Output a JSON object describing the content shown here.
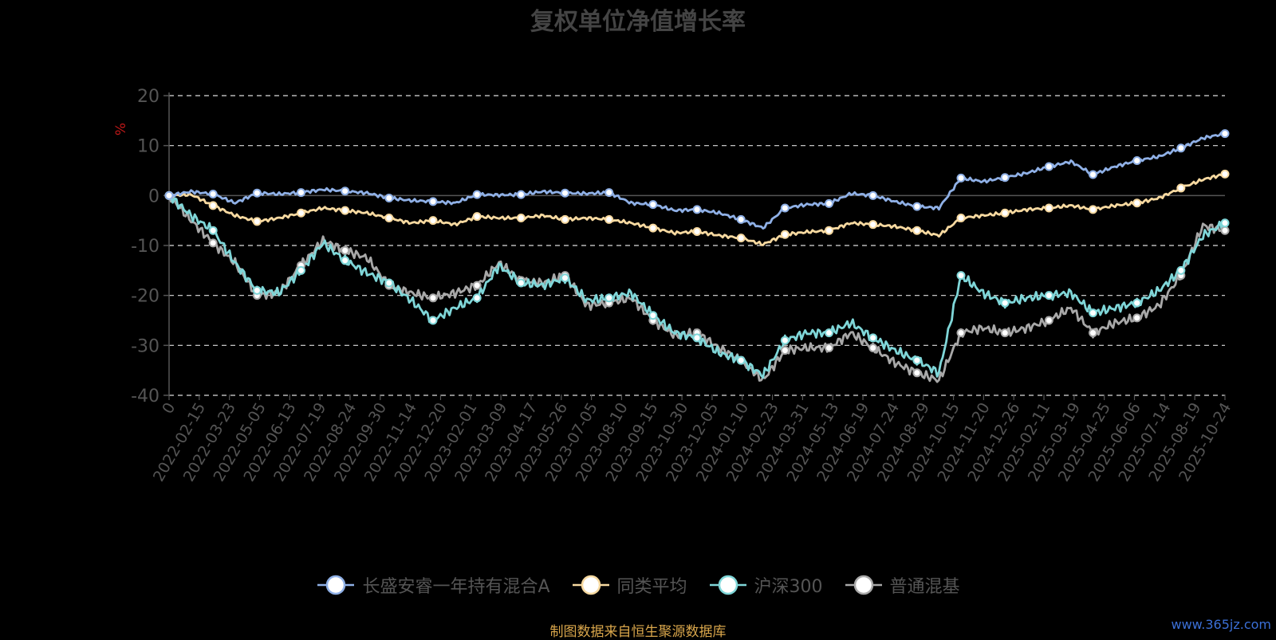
{
  "title": "复权单位净值增长率",
  "source": "制图数据来自恒生聚源数据库",
  "watermark": "www.365jz.com",
  "chart_data": {
    "type": "line",
    "ylabel": "%",
    "ylim": [
      -40,
      20
    ],
    "yticks": [
      20,
      10,
      0,
      -10,
      -20,
      -30,
      -40
    ],
    "grid": true,
    "legend_position": "bottom",
    "x_ticks": [
      "0",
      "2022-02-15",
      "2022-03-23",
      "2022-05-05",
      "2022-06-13",
      "2022-07-19",
      "2022-08-24",
      "2022-09-30",
      "2022-11-14",
      "2022-12-20",
      "2023-02-01",
      "2023-03-09",
      "2023-04-17",
      "2023-05-26",
      "2023-07-05",
      "2023-08-10",
      "2023-09-15",
      "2023-10-30",
      "2023-12-05",
      "2024-01-10",
      "2024-02-23",
      "2024-03-31",
      "2024-05-13",
      "2024-06-19",
      "2024-07-24",
      "2024-08-29",
      "2024-10-15",
      "2024-11-20",
      "2024-12-26",
      "2025-02-11",
      "2025-03-19",
      "2025-04-25",
      "2025-06-06",
      "2025-07-14",
      "2025-08-19",
      "2025-10-24"
    ],
    "series": [
      {
        "name": "长盛安睿一年持有混合A",
        "color": "#8fb0e6",
        "values": [
          0,
          0.8,
          0.3,
          -1.5,
          0.5,
          0.3,
          0.6,
          1.2,
          0.9,
          0.5,
          -0.5,
          -1,
          -1.2,
          -1.5,
          0.2,
          0.1,
          0.2,
          0.8,
          0.5,
          0.4,
          0.6,
          -1.5,
          -1.8,
          -3,
          -2.8,
          -3.5,
          -4.8,
          -6.5,
          -2.5,
          -1.8,
          -1.6,
          0.4,
          0,
          -1.2,
          -2.2,
          -2.5,
          3.5,
          2.8,
          3.6,
          4.5,
          5.8,
          6.8,
          4.2,
          5.8,
          7,
          7.8,
          9.5,
          11.5,
          12.4
        ]
      },
      {
        "name": "同类平均",
        "color": "#f7d9a0",
        "values": [
          0,
          0.2,
          -2,
          -4,
          -5.2,
          -4.5,
          -3.5,
          -2.5,
          -3,
          -3.5,
          -4.5,
          -5.5,
          -5,
          -5.8,
          -4.2,
          -4.5,
          -4.5,
          -4,
          -4.8,
          -4.5,
          -4.8,
          -5.5,
          -6.5,
          -7.5,
          -7.2,
          -8,
          -8.5,
          -9.8,
          -7.8,
          -7.3,
          -7,
          -5.5,
          -5.8,
          -6.2,
          -7,
          -8,
          -4.5,
          -4,
          -3.5,
          -2.8,
          -2.5,
          -2,
          -2.8,
          -2,
          -1.5,
          -0.5,
          1.5,
          3.2,
          4.3
        ]
      },
      {
        "name": "沪深300",
        "color": "#7fd6d8",
        "values": [
          0,
          -4,
          -7,
          -13.5,
          -19,
          -19.5,
          -15,
          -9.5,
          -13,
          -15.5,
          -17.5,
          -21,
          -25,
          -22.5,
          -20.5,
          -14,
          -17.5,
          -18,
          -16.5,
          -21,
          -20.5,
          -19.5,
          -24,
          -27.5,
          -28.5,
          -31.5,
          -33,
          -36,
          -29,
          -27.5,
          -27.5,
          -25.5,
          -28.5,
          -31,
          -33,
          -35.5,
          -16,
          -19.5,
          -21.5,
          -20.5,
          -20,
          -19.5,
          -23.5,
          -22.5,
          -21.5,
          -19,
          -15,
          -8,
          -5.5
        ]
      },
      {
        "name": "普通混基",
        "color": "#a8a8a8",
        "values": [
          0,
          -5,
          -9.5,
          -13.5,
          -20,
          -19.5,
          -14,
          -9,
          -11,
          -12.5,
          -18,
          -19.5,
          -20.5,
          -19.5,
          -18,
          -13.5,
          -17,
          -17.5,
          -16,
          -22,
          -21.5,
          -20.5,
          -25,
          -28,
          -27.5,
          -30.5,
          -33,
          -37,
          -31,
          -30.5,
          -30.5,
          -27.5,
          -30.5,
          -33.5,
          -35.5,
          -37,
          -27.5,
          -26.5,
          -27.5,
          -26.5,
          -25,
          -22.5,
          -27.5,
          -25.5,
          -24.5,
          -22,
          -16,
          -6,
          -7
        ]
      }
    ]
  }
}
